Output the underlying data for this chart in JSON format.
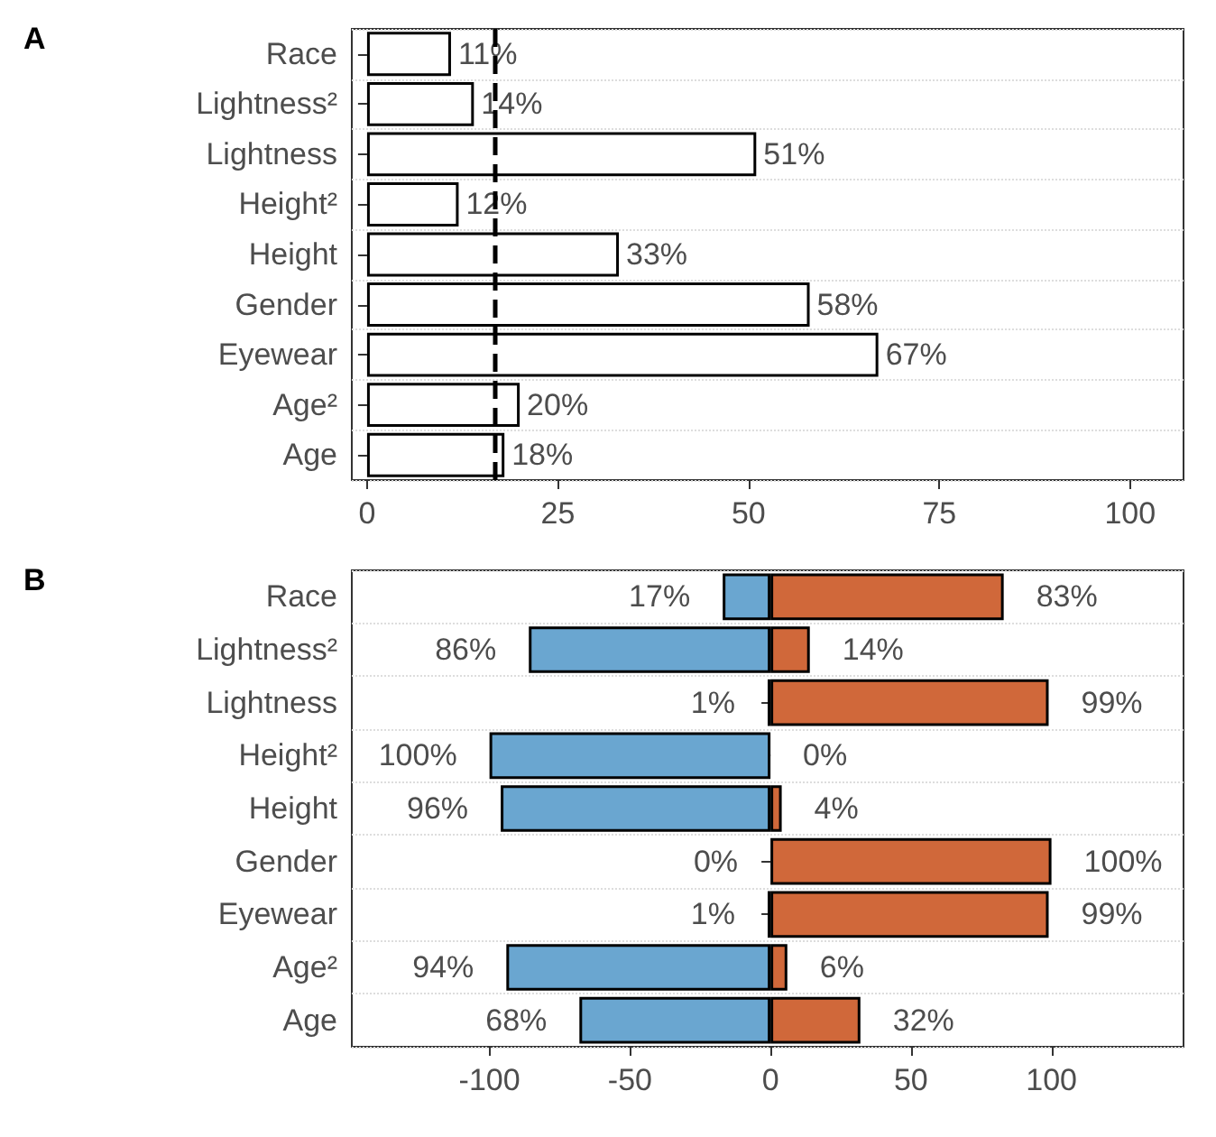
{
  "chart_data": [
    {
      "type": "bar",
      "title": "A",
      "orientation": "horizontal",
      "categories": [
        "Race",
        "Lightness²",
        "Lightness",
        "Height²",
        "Height",
        "Gender",
        "Eyewear",
        "Age²",
        "Age"
      ],
      "series": [
        {
          "color": "#ffffff",
          "values": [
            11,
            14,
            51,
            12,
            33,
            58,
            67,
            20,
            18
          ],
          "value_labels": [
            "11%",
            "14%",
            "51%",
            "12%",
            "33%",
            "58%",
            "67%",
            "20%",
            "18%"
          ]
        }
      ],
      "xlim": [
        -2,
        107
      ],
      "xticks": [
        0,
        25,
        50,
        75,
        100
      ],
      "grid": "y",
      "ref_lines": [
        {
          "axis": "x",
          "value": 16.7,
          "line_style": "dashed",
          "color": "#000000"
        }
      ]
    },
    {
      "type": "bar",
      "title": "B",
      "orientation": "horizontal",
      "categories": [
        "Race",
        "Lightness²",
        "Lightness",
        "Height²",
        "Height",
        "Gender",
        "Eyewear",
        "Age²",
        "Age"
      ],
      "series": [
        {
          "color": "#6aa6d0",
          "base": [
            -17,
            -86,
            -1,
            -100,
            -96,
            null,
            -1,
            -94,
            -68
          ],
          "values": [
            17,
            86,
            1,
            100,
            96,
            0,
            1,
            94,
            68
          ],
          "value_labels": [
            "17%",
            "86%",
            "1%",
            "100%",
            "96%",
            "0%",
            "1%",
            "94%",
            "68%"
          ]
        },
        {
          "color": "#d0683a",
          "values": [
            83,
            14,
            99,
            0,
            4,
            100,
            99,
            6,
            32
          ],
          "value_labels": [
            "83%",
            "14%",
            "99%",
            "0%",
            "4%",
            "100%",
            "99%",
            "6%",
            "32%"
          ]
        }
      ],
      "xlim": [
        -149,
        147
      ],
      "xticks": [
        -100,
        -50,
        0,
        50,
        100
      ],
      "grid": "y"
    }
  ]
}
